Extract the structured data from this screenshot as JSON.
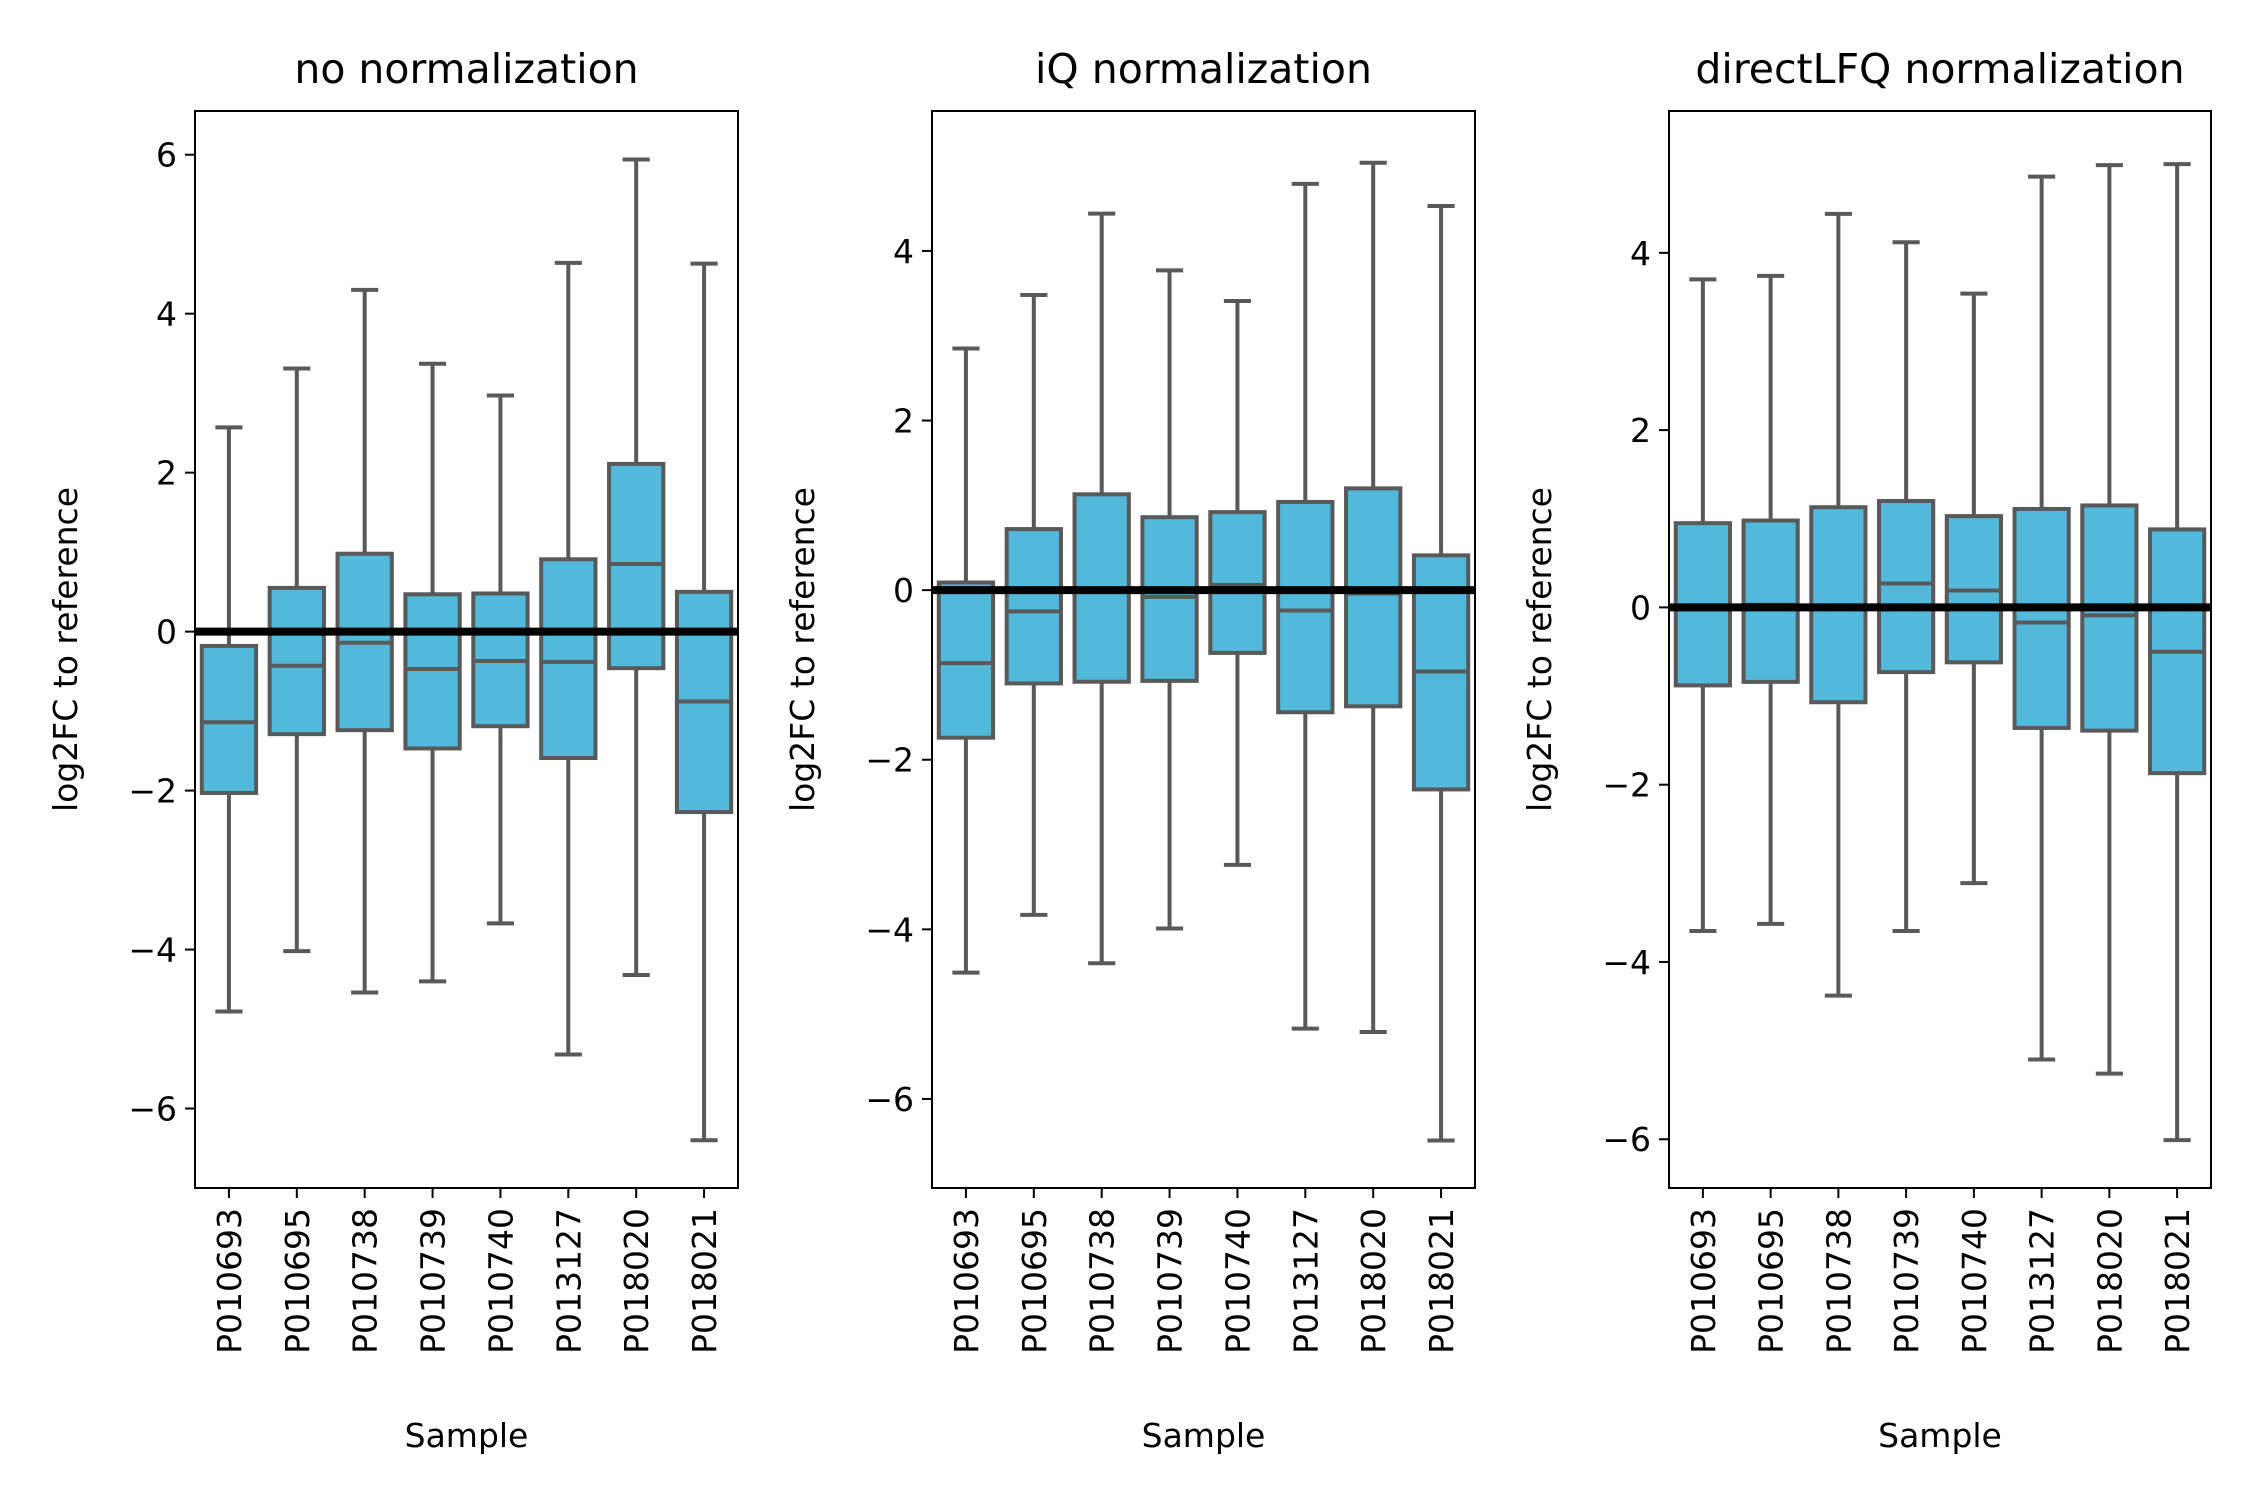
{
  "chart_data": [
    {
      "type": "box",
      "title": "no normalization",
      "xlabel": "Sample",
      "ylabel": "log2FC to reference",
      "ylim": [
        -7,
        6.55
      ],
      "yticks": [
        -6,
        -4,
        -2,
        0,
        2,
        4,
        6
      ],
      "ytick_labels": [
        "−6",
        "−4",
        "−2",
        "0",
        "2",
        "4",
        "6"
      ],
      "reference_line": 0,
      "categories": [
        "P010693",
        "P010695",
        "P010738",
        "P010739",
        "P010740",
        "P013127",
        "P018020",
        "P018021"
      ],
      "boxes": [
        {
          "whisker_low": -4.78,
          "q1": -2.03,
          "median": -1.14,
          "q3": -0.18,
          "whisker_high": 2.57
        },
        {
          "whisker_low": -4.02,
          "q1": -1.29,
          "median": -0.43,
          "q3": 0.55,
          "whisker_high": 3.31
        },
        {
          "whisker_low": -4.54,
          "q1": -1.24,
          "median": -0.14,
          "q3": 0.98,
          "whisker_high": 4.3
        },
        {
          "whisker_low": -4.4,
          "q1": -1.47,
          "median": -0.47,
          "q3": 0.47,
          "whisker_high": 3.37
        },
        {
          "whisker_low": -3.67,
          "q1": -1.19,
          "median": -0.37,
          "q3": 0.48,
          "whisker_high": 2.97
        },
        {
          "whisker_low": -5.32,
          "q1": -1.59,
          "median": -0.38,
          "q3": 0.91,
          "whisker_high": 4.64
        },
        {
          "whisker_low": -4.32,
          "q1": -0.46,
          "median": 0.85,
          "q3": 2.11,
          "whisker_high": 5.94
        },
        {
          "whisker_low": -6.4,
          "q1": -2.27,
          "median": -0.88,
          "q3": 0.5,
          "whisker_high": 4.63
        }
      ]
    },
    {
      "type": "box",
      "title": "iQ normalization",
      "xlabel": "Sample",
      "ylabel": "log2FC to reference",
      "ylim": [
        -7.05,
        5.65
      ],
      "yticks": [
        -6,
        -4,
        -2,
        0,
        2,
        4
      ],
      "ytick_labels": [
        "−6",
        "−4",
        "−2",
        "0",
        "2",
        "4"
      ],
      "reference_line": 0,
      "categories": [
        "P010693",
        "P010695",
        "P010738",
        "P010739",
        "P010740",
        "P013127",
        "P018020",
        "P018021"
      ],
      "boxes": [
        {
          "whisker_low": -4.51,
          "q1": -1.74,
          "median": -0.86,
          "q3": 0.09,
          "whisker_high": 2.85
        },
        {
          "whisker_low": -3.83,
          "q1": -1.1,
          "median": -0.25,
          "q3": 0.72,
          "whisker_high": 3.48
        },
        {
          "whisker_low": -4.4,
          "q1": -1.08,
          "median": 0.02,
          "q3": 1.13,
          "whisker_high": 4.44
        },
        {
          "whisker_low": -3.99,
          "q1": -1.07,
          "median": -0.08,
          "q3": 0.86,
          "whisker_high": 3.77
        },
        {
          "whisker_low": -3.24,
          "q1": -0.74,
          "median": 0.06,
          "q3": 0.92,
          "whisker_high": 3.41
        },
        {
          "whisker_low": -5.17,
          "q1": -1.44,
          "median": -0.24,
          "q3": 1.04,
          "whisker_high": 4.79
        },
        {
          "whisker_low": -5.21,
          "q1": -1.37,
          "median": -0.04,
          "q3": 1.2,
          "whisker_high": 5.04
        },
        {
          "whisker_low": -6.49,
          "q1": -2.35,
          "median": -0.96,
          "q3": 0.41,
          "whisker_high": 4.53
        }
      ]
    },
    {
      "type": "box",
      "title": "directLFQ normalization",
      "xlabel": "Sample",
      "ylabel": "log2FC to reference",
      "ylim": [
        -6.55,
        5.6
      ],
      "yticks": [
        -6,
        -4,
        -2,
        0,
        2,
        4
      ],
      "ytick_labels": [
        "−6",
        "−4",
        "−2",
        "0",
        "2",
        "4"
      ],
      "reference_line": 0,
      "categories": [
        "P010693",
        "P010695",
        "P010738",
        "P010739",
        "P010740",
        "P013127",
        "P018020",
        "P018021"
      ],
      "boxes": [
        {
          "whisker_low": -3.65,
          "q1": -0.88,
          "median": -0.02,
          "q3": 0.95,
          "whisker_high": 3.7
        },
        {
          "whisker_low": -3.57,
          "q1": -0.84,
          "median": 0.03,
          "q3": 0.98,
          "whisker_high": 3.74
        },
        {
          "whisker_low": -4.38,
          "q1": -1.07,
          "median": -0.01,
          "q3": 1.13,
          "whisker_high": 4.44
        },
        {
          "whisker_low": -3.65,
          "q1": -0.73,
          "median": 0.27,
          "q3": 1.2,
          "whisker_high": 4.12
        },
        {
          "whisker_low": -3.11,
          "q1": -0.62,
          "median": 0.19,
          "q3": 1.03,
          "whisker_high": 3.54
        },
        {
          "whisker_low": -5.1,
          "q1": -1.36,
          "median": -0.17,
          "q3": 1.11,
          "whisker_high": 4.86
        },
        {
          "whisker_low": -5.26,
          "q1": -1.39,
          "median": -0.09,
          "q3": 1.15,
          "whisker_high": 4.99
        },
        {
          "whisker_low": -6.01,
          "q1": -1.87,
          "median": -0.5,
          "q3": 0.88,
          "whisker_high": 5.0
        }
      ]
    }
  ],
  "colors": {
    "box_fill": "#52b9da",
    "box_edge": "#595959",
    "reference_line": "#000000",
    "axes": "#000000"
  }
}
